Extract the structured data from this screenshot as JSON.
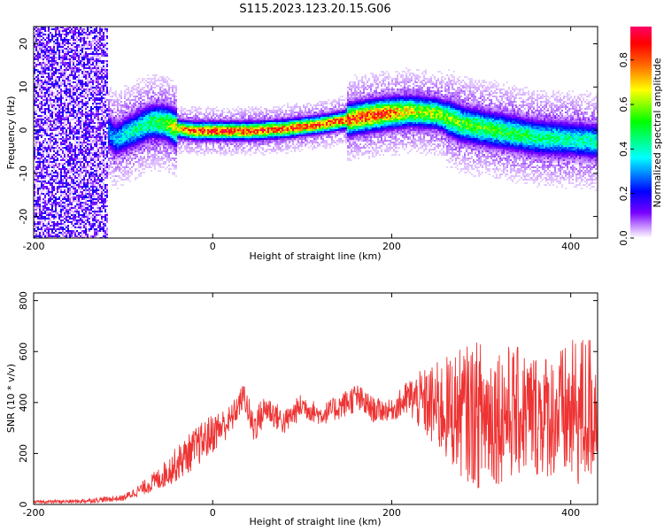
{
  "title": "S115.2023.123.20.15.G06",
  "top_panel": {
    "xlabel": "Height of straight line (km)",
    "ylabel": "Frequency (Hz)",
    "colorbar_label": "Normalized spectral amplitude"
  },
  "bottom_panel": {
    "xlabel": "Height of straight line (km)",
    "ylabel": "SNR (10 * v/v)"
  },
  "chart_data": [
    {
      "type": "heatmap",
      "title": "S115.2023.123.20.15.G06",
      "xlabel": "Height of straight line (km)",
      "ylabel": "Frequency (Hz)",
      "xlim": [
        -200,
        430
      ],
      "ylim": [
        -25,
        24
      ],
      "xticks": [
        -200,
        0,
        200,
        400
      ],
      "yticks": [
        20,
        10,
        0,
        -10,
        -20
      ],
      "colorbar": {
        "label": "Normalized spectral amplitude",
        "range": [
          0,
          0.95
        ],
        "ticks": [
          0.0,
          0.2,
          0.4,
          0.6,
          0.8
        ],
        "colors": [
          "#ffffff",
          "#7700ff",
          "#0000ff",
          "#00ffff",
          "#00ff00",
          "#ffff00",
          "#ff6600",
          "#ff0000",
          "#ff0066"
        ]
      },
      "ridge_center_hz": {
        "x": [
          -125,
          -110,
          -90,
          -70,
          -55,
          -40,
          -20,
          0,
          40,
          80,
          120,
          160,
          190,
          220,
          250,
          280,
          320,
          360,
          400,
          430
        ],
        "freq": [
          2,
          -2,
          0,
          2,
          2,
          0.5,
          0,
          0,
          0,
          0.5,
          1.5,
          3,
          4,
          4.5,
          4,
          1.5,
          0,
          -1.5,
          -2,
          -2.5
        ]
      },
      "ridge_peak_amplitude": {
        "x": [
          -125,
          -110,
          -90,
          -70,
          -55,
          -40,
          -20,
          0,
          40,
          80,
          120,
          160,
          190,
          220,
          250,
          280,
          320,
          360,
          400,
          430
        ],
        "amp": [
          0.3,
          0.35,
          0.45,
          0.5,
          0.6,
          0.75,
          0.9,
          0.92,
          0.9,
          0.88,
          0.88,
          0.9,
          0.88,
          0.7,
          0.65,
          0.6,
          0.55,
          0.5,
          0.45,
          0.45
        ]
      },
      "noise_region_x": [
        -200,
        -118
      ]
    },
    {
      "type": "line",
      "xlabel": "Height of straight line (km)",
      "ylabel": "SNR (10 * v/v)",
      "xlim": [
        -200,
        430
      ],
      "ylim": [
        0,
        830
      ],
      "xticks": [
        -200,
        0,
        200,
        400
      ],
      "yticks": [
        0,
        200,
        400,
        600,
        800
      ],
      "color": "#ee3333",
      "envelope": {
        "x": [
          -200,
          -150,
          -100,
          -80,
          -60,
          -40,
          -20,
          0,
          20,
          35,
          45,
          60,
          80,
          100,
          120,
          140,
          160,
          180,
          200,
          220,
          250,
          280,
          300,
          320,
          350,
          380,
          400,
          420,
          430
        ],
        "base": [
          10,
          12,
          25,
          60,
          100,
          160,
          220,
          280,
          330,
          430,
          300,
          380,
          320,
          390,
          350,
          380,
          420,
          370,
          370,
          420,
          380,
          360,
          350,
          360,
          360,
          350,
          350,
          370,
          380
        ],
        "noise": [
          5,
          8,
          12,
          25,
          45,
          70,
          80,
          80,
          60,
          50,
          70,
          60,
          50,
          50,
          40,
          50,
          60,
          50,
          40,
          80,
          180,
          260,
          300,
          280,
          250,
          250,
          290,
          320,
          220
        ]
      }
    }
  ]
}
